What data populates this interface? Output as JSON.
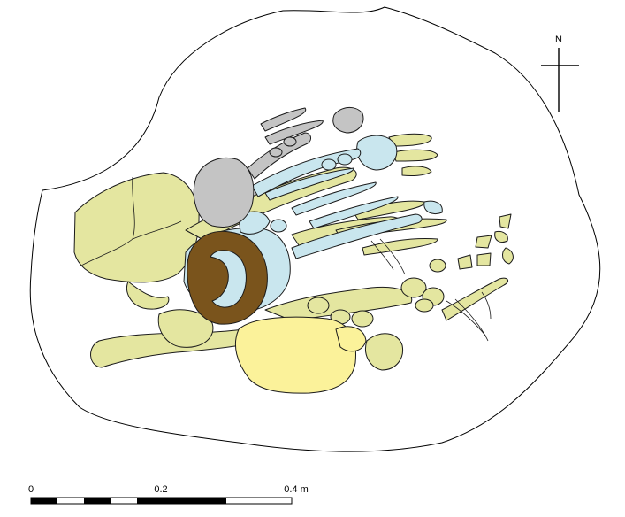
{
  "north_arrow": {
    "label": "N"
  },
  "scale_bar": {
    "labels": [
      "0",
      "0.2",
      "0.4 m"
    ]
  },
  "colors": {
    "pit_outline": "#000000",
    "individual_a": "#e4e6a0",
    "individual_b": "#c9e6ee",
    "individual_c": "#c4c4c4",
    "individual_d": "#fbf29a",
    "ring_object": "#7a541c"
  }
}
